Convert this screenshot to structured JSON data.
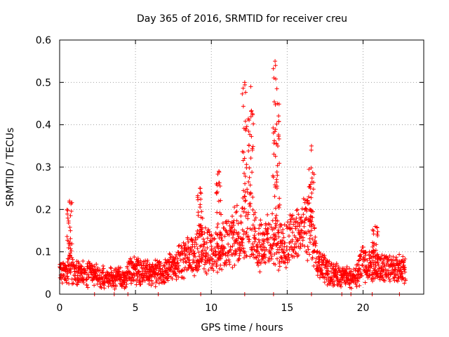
{
  "chart_data": {
    "type": "scatter",
    "title": "Day 365 of 2016, SRMTID for receiver creu",
    "xlabel": "GPS time / hours",
    "ylabel": "SRMTID / TECUs",
    "xlim": [
      0,
      24
    ],
    "ylim": [
      0,
      0.6
    ],
    "xticks": [
      0,
      5,
      10,
      15,
      20
    ],
    "yticks": [
      0,
      0.1,
      0.2,
      0.3,
      0.4,
      0.5,
      0.6
    ],
    "xtick_labels": [
      "0",
      "5",
      "10",
      "15",
      "20"
    ],
    "ytick_labels": [
      "0",
      "0.1",
      "0.2",
      "0.3",
      "0.4",
      "0.5",
      "0.6"
    ],
    "grid": true,
    "marker": "+",
    "series": [
      {
        "name": "SRMTID",
        "color": "#ff0000",
        "profile": {
          "hours": [
            0,
            0.5,
            0.7,
            1,
            2,
            3,
            4,
            4.4,
            4.5,
            5,
            6,
            7,
            8,
            9,
            9.5,
            10,
            11,
            12,
            12.5,
            13,
            13.5,
            14,
            14.5,
            15,
            16,
            16.5,
            17,
            18,
            19,
            19.5,
            20,
            20.5,
            21,
            22,
            22.8
          ],
          "base_srmtid": [
            0.06,
            0.05,
            0.08,
            0.05,
            0.05,
            0.04,
            0.04,
            0.035,
            0.06,
            0.06,
            0.05,
            0.06,
            0.08,
            0.1,
            0.12,
            0.1,
            0.12,
            0.17,
            0.2,
            0.13,
            0.12,
            0.14,
            0.12,
            0.13,
            0.15,
            0.18,
            0.07,
            0.05,
            0.04,
            0.04,
            0.08,
            0.07,
            0.07,
            0.06,
            0.06
          ]
        },
        "peaks": [
          {
            "hour": 0.65,
            "srmtid": 0.22
          },
          {
            "hour": 9.25,
            "srmtid": 0.25
          },
          {
            "hour": 10.5,
            "srmtid": 0.29
          },
          {
            "hour": 12.2,
            "srmtid": 0.5
          },
          {
            "hour": 12.6,
            "srmtid": 0.49
          },
          {
            "hour": 14.2,
            "srmtid": 0.55
          },
          {
            "hour": 14.35,
            "srmtid": 0.45
          },
          {
            "hour": 16.6,
            "srmtid": 0.35
          },
          {
            "hour": 20.8,
            "srmtid": 0.16
          }
        ]
      }
    ]
  }
}
